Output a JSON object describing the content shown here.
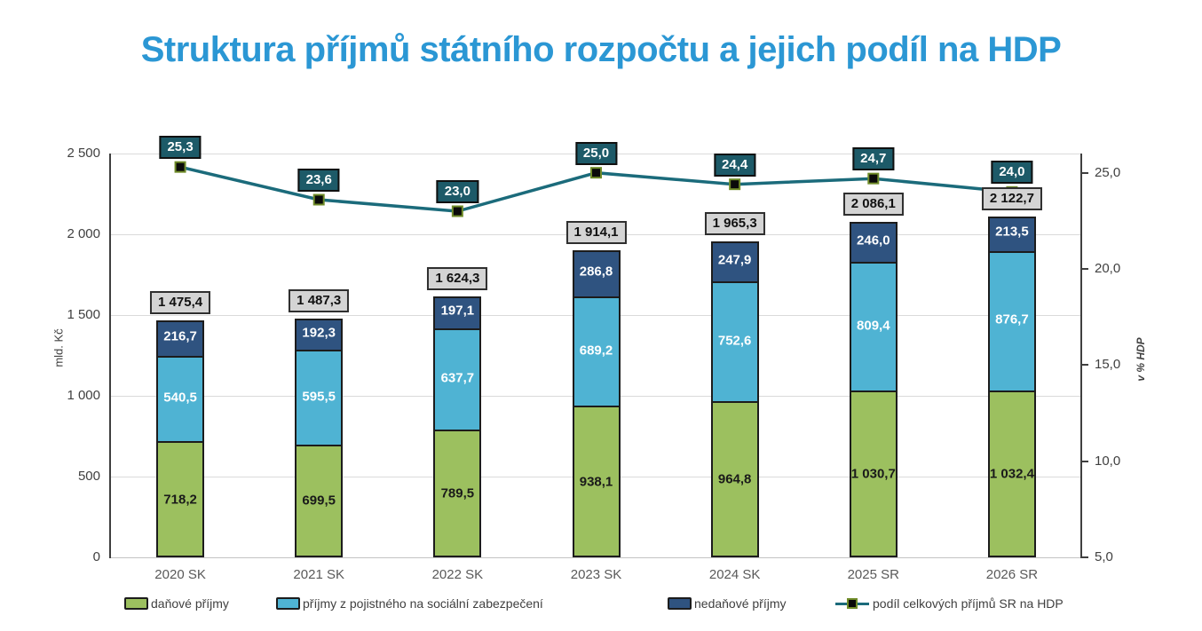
{
  "title": "Struktura příjmů státního rozpočtu a jejich podíl na HDP",
  "colors": {
    "title": "#2b97d4",
    "tax_green": "#9cc05f",
    "social_blue": "#4fb3d3",
    "nontax_navy": "#2f5380",
    "gdp_line": "#1b6b7b",
    "gdp_badge_bg": "#1d5a68",
    "total_badge_bg": "#d4d4d4",
    "marker_fill": "#0a0a0a",
    "marker_border": "#6f8b28"
  },
  "left_axis": {
    "label": "mld. Kč",
    "min": 0,
    "max": 2500,
    "ticks": [
      {
        "label": "2 500",
        "value": 2500
      },
      {
        "label": "2 000",
        "value": 2000
      },
      {
        "label": "1 500",
        "value": 1500
      },
      {
        "label": "1 000",
        "value": 1000
      },
      {
        "label": "500",
        "value": 500
      },
      {
        "label": "0",
        "value": 0
      }
    ]
  },
  "right_axis": {
    "label": "v % HDP",
    "min": 5,
    "max": 26,
    "ticks": [
      {
        "label": "25,0",
        "value": 25
      },
      {
        "label": "20,0",
        "value": 20
      },
      {
        "label": "15,0",
        "value": 15
      },
      {
        "label": "10,0",
        "value": 10
      },
      {
        "label": "5,0",
        "value": 5
      }
    ]
  },
  "chart_data": {
    "type": "stacked-bar+line",
    "categories": [
      "2020 SK",
      "2021 SK",
      "2022 SK",
      "2023 SK",
      "2024 SK",
      "2025 SR",
      "2026 SR"
    ],
    "series": [
      {
        "name": "daňové příjmy",
        "color_key": "tax_green",
        "label_color": "#1a1a1a",
        "values": [
          718.2,
          699.5,
          789.5,
          938.1,
          964.8,
          1030.7,
          1032.4
        ],
        "labels": [
          "718,2",
          "699,5",
          "789,5",
          "938,1",
          "964,8",
          "1 030,7",
          "1 032,4"
        ]
      },
      {
        "name": "příjmy z pojistného na sociální zabezpečení",
        "color_key": "social_blue",
        "label_color": "#ffffff",
        "values": [
          540.5,
          595.5,
          637.7,
          689.2,
          752.6,
          809.4,
          876.7
        ],
        "labels": [
          "540,5",
          "595,5",
          "637,7",
          "689,2",
          "752,6",
          "809,4",
          "876,7"
        ]
      },
      {
        "name": "nedaňové příjmy",
        "color_key": "nontax_navy",
        "label_color": "#ffffff",
        "values": [
          216.7,
          192.3,
          197.1,
          286.8,
          247.9,
          246.0,
          213.5
        ],
        "labels": [
          "216,7",
          "192,3",
          "197,1",
          "286,8",
          "247,9",
          "246,0",
          "213,5"
        ]
      }
    ],
    "totals": {
      "values": [
        1475.4,
        1487.3,
        1624.3,
        1914.1,
        1965.3,
        2086.1,
        2122.7
      ],
      "labels": [
        "1 475,4",
        "1 487,3",
        "1 624,3",
        "1 914,1",
        "1 965,3",
        "2 086,1",
        "2 122,7"
      ]
    },
    "line": {
      "name": "podíl celkových příjmů SR na HDP",
      "axis": "right",
      "values": [
        25.3,
        23.6,
        23.0,
        25.0,
        24.4,
        24.7,
        24.0
      ],
      "labels": [
        "25,3",
        "23,6",
        "23,0",
        "25,0",
        "24,4",
        "24,7",
        "24,0"
      ]
    },
    "ylim_left": [
      0,
      2500
    ],
    "ylim_right": [
      5,
      26
    ],
    "grid": true,
    "legend_position": "bottom"
  }
}
